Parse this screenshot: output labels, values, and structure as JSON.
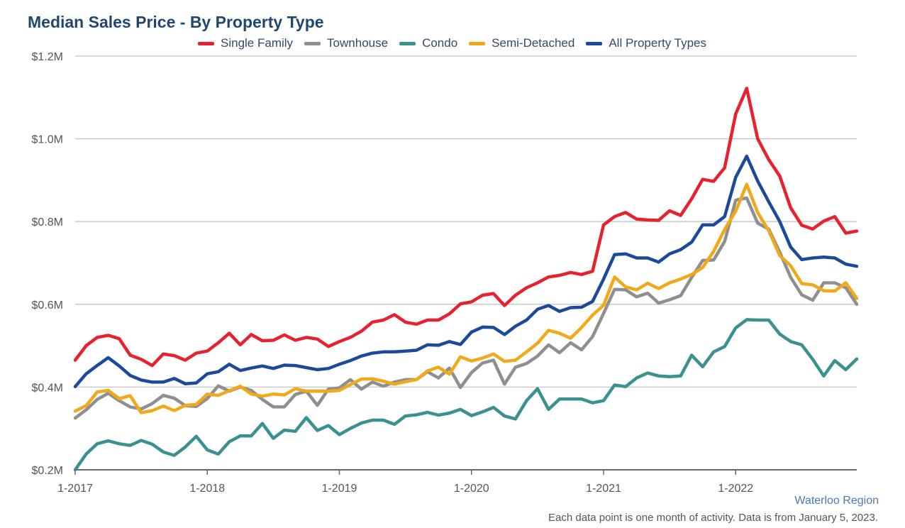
{
  "title": "Median Sales Price - By Property Type",
  "source_label": "Waterloo Region",
  "footnote": "Each data point is one month of activity. Data is from January 5, 2023.",
  "chart_data": {
    "type": "line",
    "title": "Median Sales Price - By Property Type",
    "xlabel": "",
    "ylabel": "",
    "x_start": "1-2017",
    "x_ticks": [
      "1-2017",
      "1-2018",
      "1-2019",
      "1-2020",
      "1-2021",
      "1-2022"
    ],
    "y_ticks": [
      {
        "value": 1200000,
        "label": "$1.2M"
      },
      {
        "value": 1000000,
        "label": "$1.0M"
      },
      {
        "value": 800000,
        "label": "$0.8M"
      },
      {
        "value": 600000,
        "label": "$0.6M"
      },
      {
        "value": 400000,
        "label": "$0.4M"
      },
      {
        "value": 200000,
        "label": "$0.2M"
      }
    ],
    "ylim": [
      200000,
      1200000
    ],
    "grid": "horizontal",
    "legend": "top",
    "series": [
      {
        "name": "Single Family",
        "color": "#e8212e",
        "values": [
          465000,
          500000,
          520000,
          525000,
          517000,
          477000,
          467000,
          452000,
          480000,
          476000,
          465000,
          482000,
          487000,
          507000,
          530000,
          502000,
          527000,
          512000,
          513000,
          526000,
          513000,
          520000,
          516000,
          498000,
          510000,
          520000,
          535000,
          557000,
          562000,
          575000,
          557000,
          552000,
          562000,
          562000,
          577000,
          601000,
          606000,
          622000,
          626000,
          597000,
          622000,
          640000,
          652000,
          666000,
          670000,
          677000,
          672000,
          680000,
          792000,
          812000,
          822000,
          806000,
          804000,
          803000,
          826000,
          815000,
          855000,
          902000,
          897000,
          930000,
          1060000,
          1122000,
          1000000,
          950000,
          910000,
          833000,
          791000,
          782000,
          801000,
          812000,
          772000,
          777000
        ]
      },
      {
        "name": "Townhouse",
        "color": "#8f8f8f",
        "values": [
          325000,
          345000,
          370000,
          385000,
          367000,
          352000,
          347000,
          360000,
          380000,
          373000,
          355000,
          353000,
          372000,
          403000,
          390000,
          400000,
          392000,
          370000,
          352000,
          352000,
          382000,
          390000,
          356000,
          395000,
          398000,
          418000,
          395000,
          412000,
          402000,
          412000,
          418000,
          418000,
          437000,
          422000,
          446000,
          399000,
          435000,
          458000,
          465000,
          407000,
          448000,
          457000,
          475000,
          502000,
          483000,
          507000,
          490000,
          522000,
          578000,
          636000,
          635000,
          618000,
          627000,
          603000,
          611000,
          621000,
          665000,
          706000,
          707000,
          752000,
          852000,
          857000,
          796000,
          782000,
          726000,
          665000,
          623000,
          610000,
          652000,
          652000,
          640000,
          600000
        ]
      },
      {
        "name": "Condo",
        "color": "#3a918f",
        "values": [
          200000,
          238000,
          263000,
          270000,
          263000,
          259000,
          271000,
          262000,
          243000,
          235000,
          255000,
          281000,
          248000,
          238000,
          268000,
          282000,
          282000,
          312000,
          276000,
          296000,
          293000,
          326000,
          295000,
          307000,
          285000,
          300000,
          313000,
          320000,
          320000,
          310000,
          330000,
          333000,
          339000,
          332000,
          337000,
          346000,
          331000,
          340000,
          351000,
          330000,
          323000,
          367000,
          396000,
          346000,
          371000,
          371000,
          371000,
          362000,
          367000,
          405000,
          401000,
          422000,
          434000,
          427000,
          425000,
          427000,
          477000,
          449000,
          485000,
          498000,
          543000,
          563000,
          562000,
          562000,
          528000,
          510000,
          502000,
          467000,
          427000,
          464000,
          442000,
          468000
        ]
      },
      {
        "name": "Semi-Detached",
        "color": "#f0a918",
        "values": [
          342000,
          355000,
          388000,
          392000,
          372000,
          379000,
          338000,
          343000,
          354000,
          343000,
          356000,
          358000,
          383000,
          380000,
          391000,
          402000,
          383000,
          378000,
          383000,
          381000,
          396000,
          390000,
          390000,
          390000,
          392000,
          406000,
          419000,
          420000,
          414000,
          407000,
          413000,
          418000,
          439000,
          448000,
          431000,
          473000,
          463000,
          470000,
          480000,
          462000,
          465000,
          485000,
          506000,
          537000,
          530000,
          518000,
          544000,
          574000,
          598000,
          666000,
          642000,
          635000,
          651000,
          638000,
          652000,
          661000,
          672000,
          689000,
          728000,
          781000,
          825000,
          890000,
          822000,
          778000,
          718000,
          693000,
          650000,
          647000,
          633000,
          632000,
          652000,
          614000
        ]
      },
      {
        "name": "All Property Types",
        "color": "#1c4a9b",
        "values": [
          401000,
          432000,
          452000,
          471000,
          451000,
          428000,
          417000,
          412000,
          412000,
          421000,
          408000,
          410000,
          432000,
          437000,
          455000,
          440000,
          446000,
          451000,
          445000,
          453000,
          452000,
          447000,
          442000,
          445000,
          455000,
          464000,
          475000,
          482000,
          485000,
          485000,
          487000,
          489000,
          502000,
          501000,
          510000,
          503000,
          533000,
          545000,
          544000,
          527000,
          547000,
          562000,
          588000,
          597000,
          583000,
          592000,
          593000,
          607000,
          661000,
          720000,
          722000,
          712000,
          712000,
          702000,
          722000,
          732000,
          750000,
          792000,
          792000,
          812000,
          907000,
          958000,
          898000,
          848000,
          800000,
          738000,
          708000,
          712000,
          714000,
          712000,
          697000,
          692000
        ]
      }
    ]
  }
}
